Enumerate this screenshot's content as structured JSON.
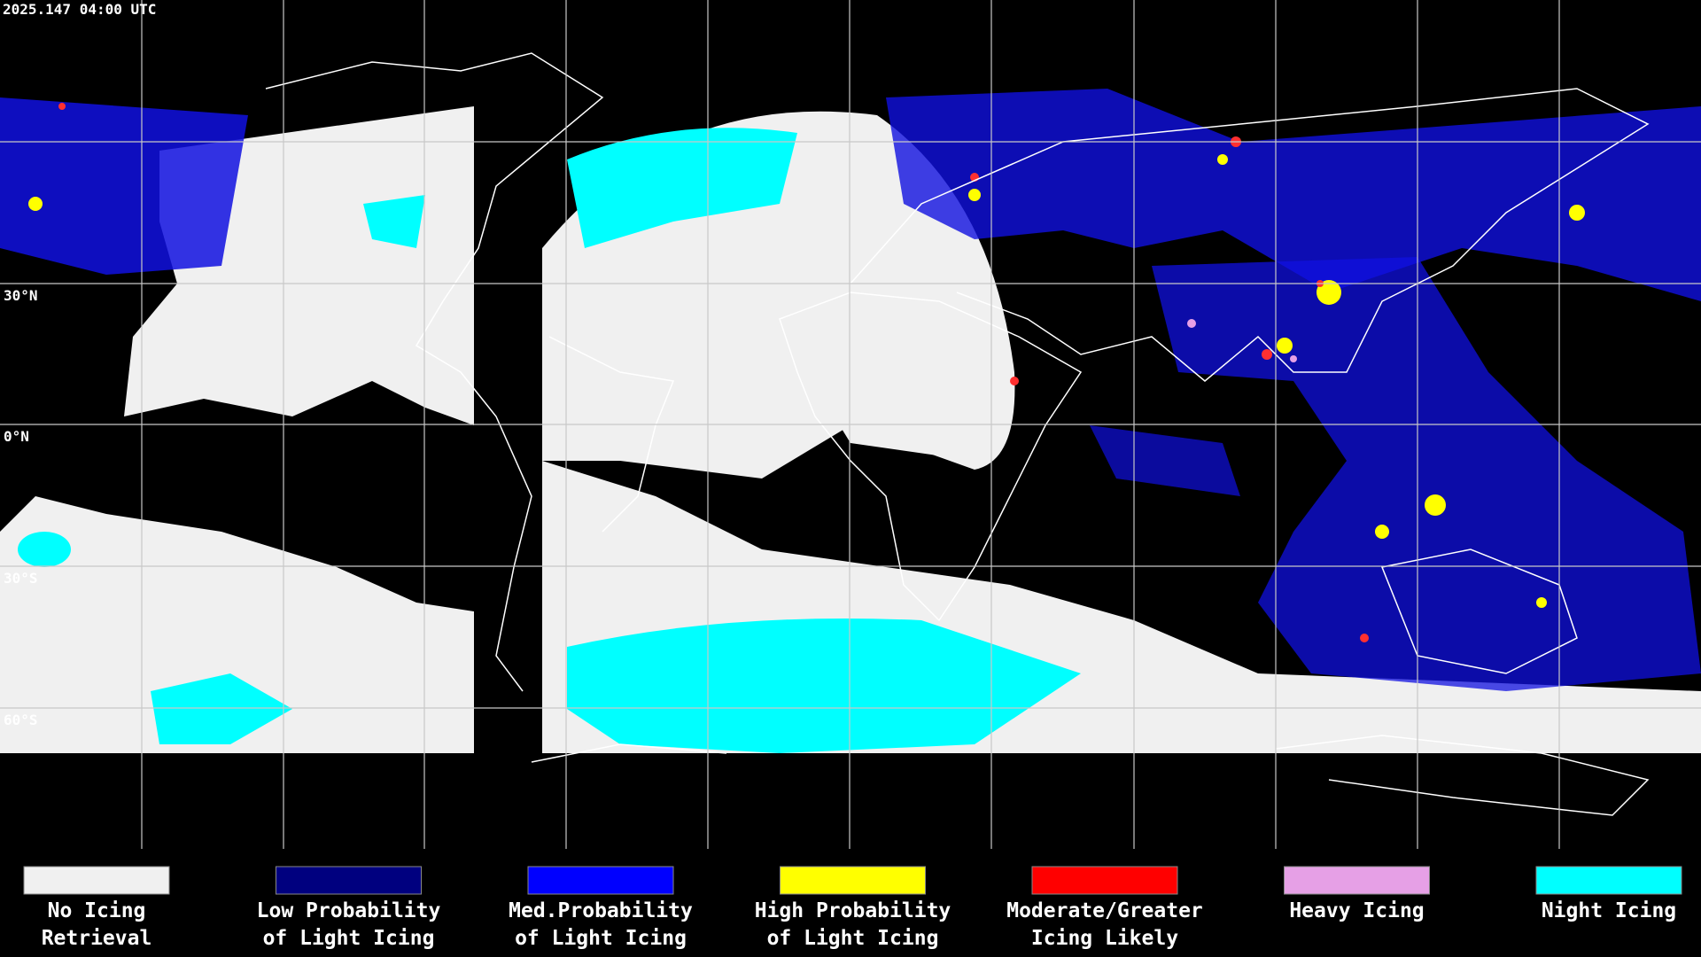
{
  "header": {
    "timestamp": "2025.147 04:00 UTC"
  },
  "grid": {
    "lat_labels": [
      "30°N",
      "0°N",
      "30°S",
      "60°S"
    ]
  },
  "legend": {
    "items": [
      {
        "lines": [
          "No Icing",
          "Retrieval"
        ],
        "color": "#f0f0f0"
      },
      {
        "lines": [
          "Low Probability",
          "of Light Icing"
        ],
        "color": "#00007f"
      },
      {
        "lines": [
          "Med.Probability",
          "of Light Icing"
        ],
        "color": "#0000ff"
      },
      {
        "lines": [
          "High Probability",
          "of Light Icing"
        ],
        "color": "#ffff00"
      },
      {
        "lines": [
          "Moderate/Greater",
          "Icing Likely"
        ],
        "color": "#ff0000"
      },
      {
        "lines": [
          "Heavy Icing"
        ],
        "color": "#e6a0e6"
      },
      {
        "lines": [
          "Night Icing"
        ],
        "color": "#00ffff"
      }
    ]
  }
}
